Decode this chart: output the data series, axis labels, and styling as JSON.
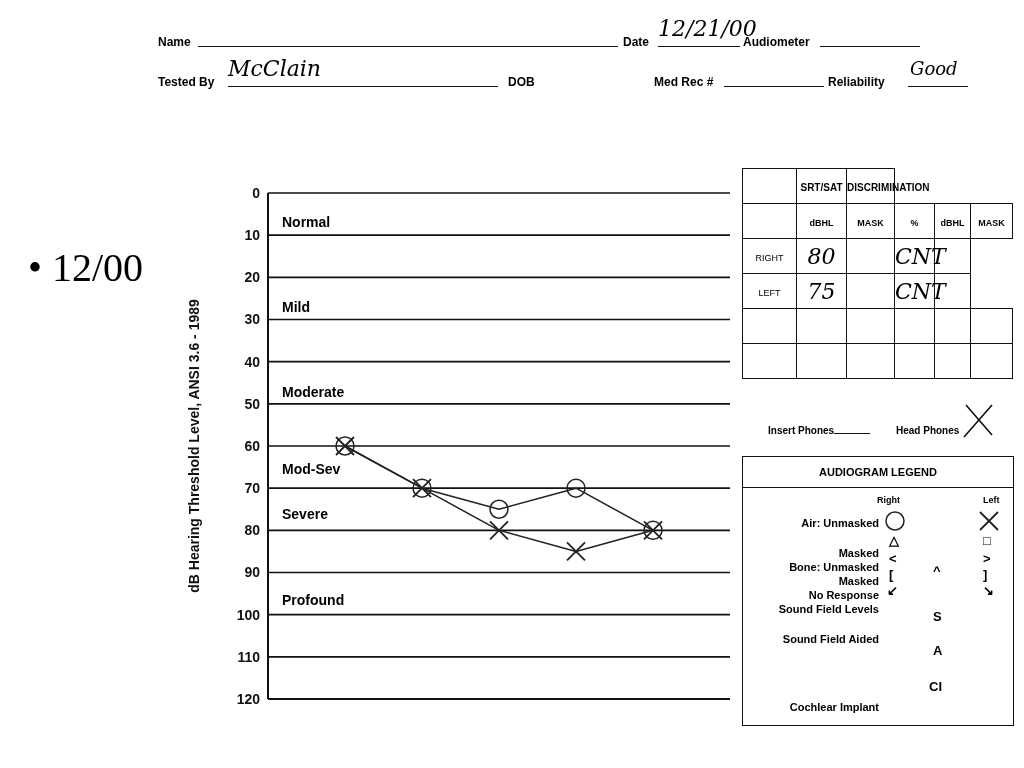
{
  "chart_data": {
    "type": "line",
    "ylabel": "dB Hearing Threshold Level, ANSI 3.6 - 1989",
    "categories": [
      null,
      null,
      null,
      null,
      null,
      null
    ],
    "series": [
      {
        "name": "Right",
        "color": "#222222",
        "marker": "circle",
        "values": [
          60,
          70,
          75,
          70,
          80,
          null
        ]
      },
      {
        "name": "Left",
        "color": "#222222",
        "marker": "cross",
        "values": [
          60,
          70,
          80,
          85,
          80,
          null
        ]
      }
    ],
    "ylim": [
      120,
      0
    ],
    "yticks": [
      0,
      10,
      20,
      30,
      40,
      50,
      60,
      70,
      80,
      90,
      100,
      110,
      120
    ],
    "grid": true,
    "tick_labels": "y",
    "line_style": "solid",
    "legend": "right",
    "legend_title": "AUDIOGRAM LEGEND",
    "annotations": [
      "• 12/00",
      "Name",
      "Date",
      "12/21/00",
      "Audiometer",
      "Tested By",
      "McClain",
      "DOB",
      "Med Rec #",
      "Reliability",
      "Good",
      "SRT/SAT",
      "DISCRIMINATION",
      "dBHL",
      "MASK",
      "%",
      "dBHL",
      "MASK",
      "RIGHT",
      "80",
      "CNT",
      "LEFT",
      "75",
      "CNT",
      "Insert Phones",
      "Head Phones",
      "Air: Unmasked",
      "Masked",
      "Bone: Unmasked",
      "Masked",
      "No Response",
      "Sound Field Levels",
      "Sound Field Aided",
      "Cochlear Implant",
      "△",
      "<",
      "[",
      "↙",
      "□",
      ">",
      "]",
      "↘",
      "^",
      "S",
      "A",
      "CI",
      "Normal",
      "Mild",
      "Moderate",
      "Mod-Sev",
      "Severe",
      "Profound"
    ]
  }
}
